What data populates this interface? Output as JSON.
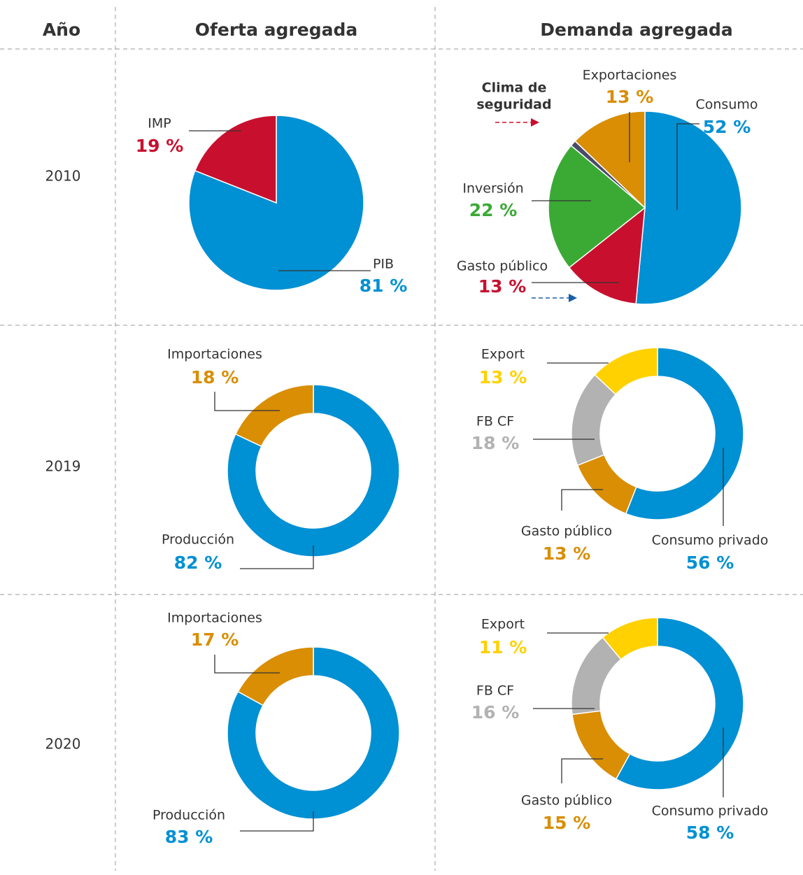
{
  "header": [
    "Año",
    "Oferta agregada",
    "Demanda agregada"
  ],
  "years": [
    "2010",
    "2019",
    "2020"
  ],
  "chart_data": [
    {
      "type": "pie",
      "categories": [
        "PIB",
        "IMP"
      ],
      "values": [
        81,
        19
      ],
      "value_labels": [
        "81 %",
        "19 %"
      ],
      "colors": [
        "#0090d4",
        "#c8102e"
      ]
    },
    {
      "type": "pie",
      "categories": [
        "Consumo",
        "Gasto público",
        "Inversión",
        null,
        "Exportaciones"
      ],
      "values": [
        52,
        13,
        22,
        1,
        13
      ],
      "value_labels": [
        "52 %",
        "13 %",
        "22 %",
        null,
        "13 %"
      ],
      "colors": [
        "#0090d4",
        "#c8102e",
        "#3aaa35",
        "#4a4a6a",
        "#d98e04"
      ],
      "annotation": [
        "Clima de",
        "seguridad"
      ]
    },
    {
      "type": "donut",
      "categories": [
        "Producción",
        "Importaciones"
      ],
      "values": [
        82,
        18
      ],
      "value_labels": [
        "82 %",
        "18 %"
      ],
      "colors": [
        "#0090d4",
        "#d98e04"
      ]
    },
    {
      "type": "donut",
      "categories": [
        "Consumo privado",
        "Gasto público",
        "FB CF",
        "Export"
      ],
      "values": [
        56,
        13,
        18,
        13
      ],
      "value_labels": [
        "56 %",
        "13 %",
        "18 %",
        "13 %"
      ],
      "colors": [
        "#0090d4",
        "#d98e04",
        "#b2b2b2",
        "#ffd100"
      ]
    },
    {
      "type": "donut",
      "categories": [
        "Producción",
        "Importaciones"
      ],
      "values": [
        83,
        17
      ],
      "value_labels": [
        "83 %",
        "17 %"
      ],
      "colors": [
        "#0090d4",
        "#d98e04"
      ]
    },
    {
      "type": "donut",
      "categories": [
        "Consumo privado",
        "Gasto público",
        "FB CF",
        "Export"
      ],
      "values": [
        58,
        15,
        16,
        11
      ],
      "value_labels": [
        "58 %",
        "15 %",
        "16 %",
        "11 %"
      ],
      "colors": [
        "#0090d4",
        "#d98e04",
        "#b2b2b2",
        "#ffd100"
      ]
    }
  ]
}
